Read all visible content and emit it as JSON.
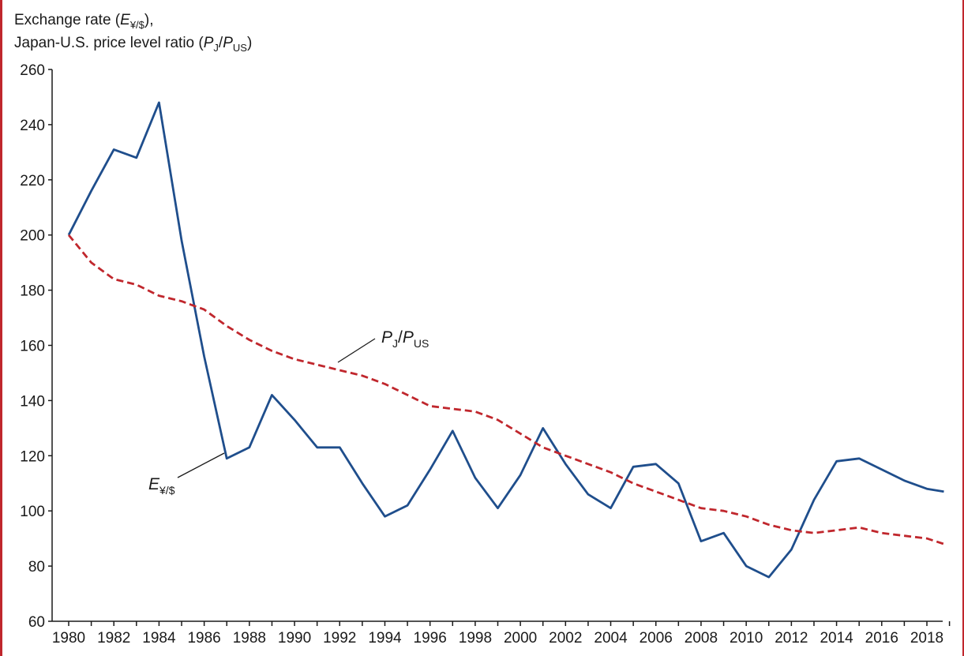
{
  "chart_data": {
    "type": "line",
    "ylabel_line1": "Exchange rate (E¥/$),",
    "ylabel_line2": "Japan-U.S. price level ratio (PJ/PUS)",
    "ylim": [
      60,
      260
    ],
    "yticks": [
      60,
      80,
      100,
      120,
      140,
      160,
      180,
      200,
      220,
      240,
      260
    ],
    "xlim": [
      1979.9,
      2019.1
    ],
    "xticks": [
      1980,
      1982,
      1984,
      1986,
      1988,
      1990,
      1992,
      1994,
      1996,
      1998,
      2000,
      2002,
      2004,
      2006,
      2008,
      2010,
      2012,
      2014,
      2016,
      2018
    ],
    "grid": false,
    "series": [
      {
        "name": "E¥/$",
        "color": "#1f4e8c",
        "style": "solid",
        "x": [
          1980,
          1981,
          1982,
          1983,
          1984,
          1985,
          1986,
          1987,
          1988,
          1989,
          1990,
          1991,
          1992,
          1993,
          1994,
          1995,
          1996,
          1997,
          1998,
          1999,
          2000,
          2001,
          2002,
          2003,
          2004,
          2005,
          2006,
          2007,
          2008,
          2009,
          2010,
          2011,
          2012,
          2013,
          2014,
          2015,
          2016,
          2017,
          2018,
          2019
        ],
        "values": [
          200,
          216,
          231,
          228,
          248,
          198,
          156,
          119,
          123,
          142,
          133,
          123,
          123,
          110,
          98,
          102,
          115,
          129,
          112,
          101,
          113,
          130,
          117,
          106,
          101,
          116,
          117,
          110,
          89,
          92,
          80,
          76,
          86,
          104,
          118,
          119,
          115,
          111,
          108,
          107
        ]
      },
      {
        "name": "PJ/PUS",
        "color": "#c0272d",
        "style": "dashed",
        "x": [
          1980,
          1981,
          1982,
          1983,
          1984,
          1985,
          1986,
          1987,
          1988,
          1989,
          1990,
          1991,
          1992,
          1993,
          1994,
          1995,
          1996,
          1997,
          1998,
          1999,
          2000,
          2001,
          2002,
          2003,
          2004,
          2005,
          2006,
          2007,
          2008,
          2009,
          2010,
          2011,
          2012,
          2013,
          2014,
          2015,
          2016,
          2017,
          2018,
          2019
        ],
        "values": [
          200,
          190,
          184,
          182,
          178,
          176,
          173,
          167,
          162,
          158,
          155,
          153,
          151,
          149,
          146,
          142,
          138,
          137,
          136,
          133,
          128,
          123,
          120,
          117,
          114,
          110,
          107,
          104,
          101,
          100,
          98,
          95,
          93,
          92,
          93,
          94,
          92,
          91,
          90,
          88
        ]
      }
    ],
    "annotations": [
      {
        "text": "PJ/PUS",
        "main": "P",
        "sub1": "J",
        "slash": "/",
        "main2": "P",
        "sub2": "US",
        "series": 1
      },
      {
        "text": "E¥/$",
        "main": "E",
        "sub1": "¥/$",
        "series": 0
      }
    ]
  }
}
